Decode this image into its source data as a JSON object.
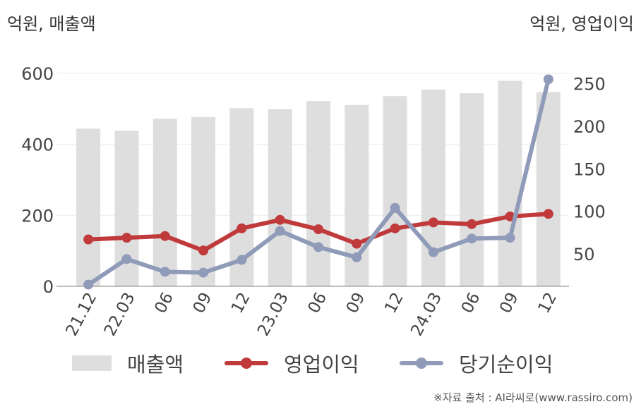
{
  "units": {
    "left": "억원, 매출액",
    "right": "억원, 영업이익"
  },
  "chart_data": {
    "type": "bar+line",
    "categories": [
      "21.12",
      "22.03",
      "06",
      "09",
      "12",
      "23.03",
      "06",
      "09",
      "12",
      "24.03",
      "06",
      "09",
      "12"
    ],
    "y_left": {
      "ylim": [
        0,
        600
      ],
      "ticks": [
        0,
        200,
        400,
        600
      ]
    },
    "y_right": {
      "ylim": [
        12,
        262
      ],
      "ticks": [
        50,
        100,
        150,
        200,
        250
      ]
    },
    "grid": true,
    "legend_position": "bottom",
    "series": [
      {
        "name": "매출액",
        "type": "bar",
        "axis": "left",
        "color": "#dedede",
        "values": [
          444,
          438,
          472,
          477,
          502,
          499,
          522,
          511,
          536,
          554,
          544,
          579,
          547
        ]
      },
      {
        "name": "영업이익",
        "type": "line",
        "axis": "right",
        "color": "#c0393b",
        "values": [
          67,
          69,
          71,
          54,
          80,
          90,
          79,
          62,
          80,
          87,
          85,
          94,
          97
        ]
      },
      {
        "name": "당기순이익",
        "type": "line",
        "axis": "right",
        "color": "#8f9bb8",
        "values": [
          14,
          44,
          29,
          28,
          43,
          77,
          58,
          46,
          104,
          52,
          68,
          69,
          255
        ]
      }
    ]
  },
  "legend": [
    {
      "label": "매출액"
    },
    {
      "label": "영업이익"
    },
    {
      "label": "당기순이익"
    }
  ],
  "source": "※자료 출처 : AI라씨로(www.rassiro.com)"
}
